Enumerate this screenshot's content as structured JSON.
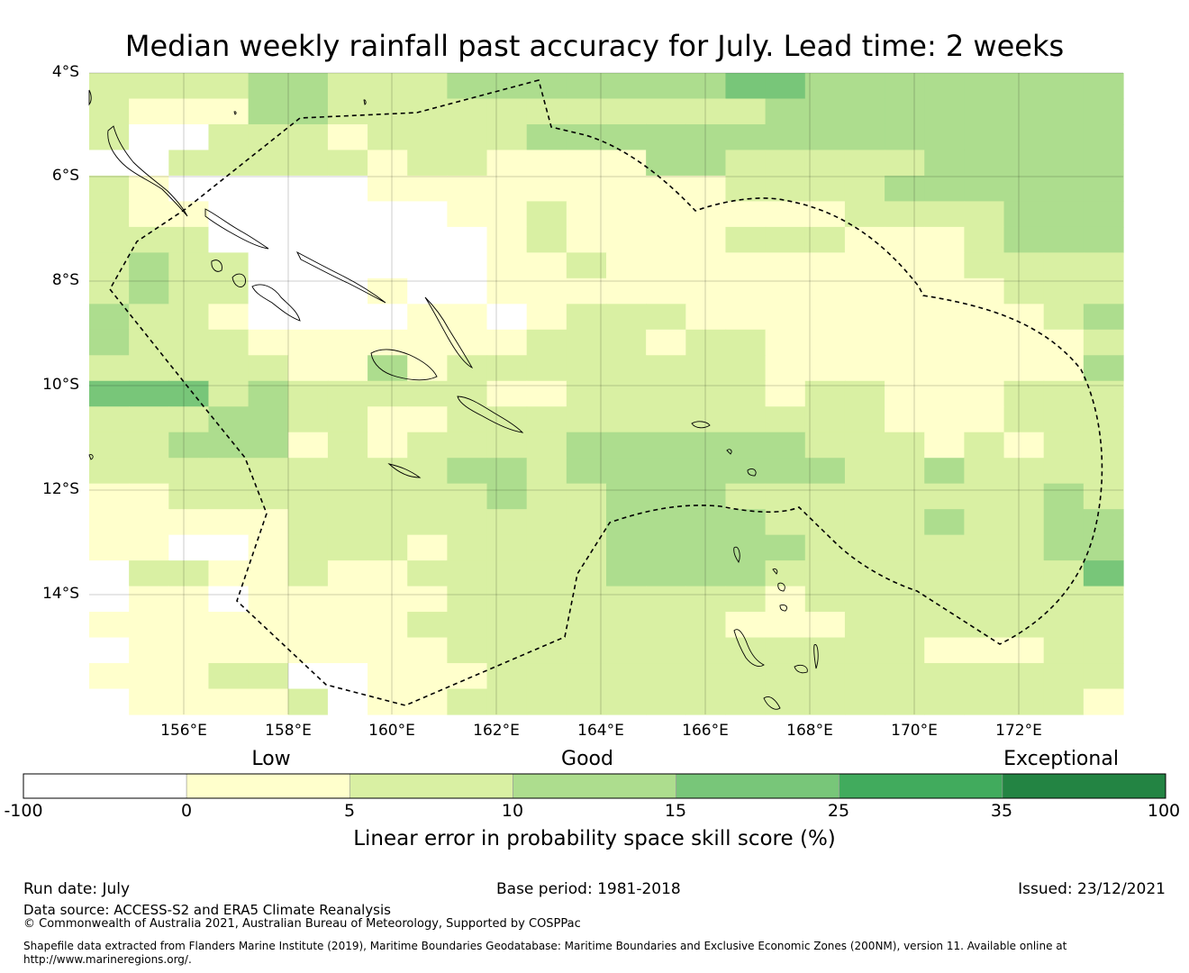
{
  "title": "Median weekly rainfall past accuracy for July. Lead time: 2 weeks",
  "map": {
    "lat_labels": [
      "4°S",
      "6°S",
      "8°S",
      "10°S",
      "12°S",
      "14°S"
    ],
    "lon_labels": [
      "156°E",
      "158°E",
      "160°E",
      "162°E",
      "164°E",
      "166°E",
      "168°E",
      "170°E",
      "172°E"
    ],
    "lat_range": [
      "4°S",
      "16.3°S"
    ],
    "lon_range": [
      "154.2°E",
      "174°E"
    ],
    "category_colors": [
      "#ffffff",
      "#ffffcc",
      "#d9f0a3",
      "#addd8e",
      "#78c679",
      "#41ab5d",
      "#238443"
    ],
    "cell_categories": [
      "22223322233333334433333333",
      "21113322222222222333333333",
      "20022212222333333333333333",
      "00222221221111332222233333",
      "21000001111111112222333333",
      "21100000011211111112222333",
      "22200000001211112221112333",
      "23220000001121111111112222",
      "23220001001111111111111222",
      "32210000110122211111111123",
      "32221111111222122111111112",
      "22222113122222222111111113",
      "44423222221122222122111222",
      "22233221122222222222111222",
      "22333121222233333322212122",
      "22222222233233333332232222",
      "11222222223223332222222232",
      "11111222222223333222232233",
      "11001222122223333322222233",
      "02211211222223333222222224",
      "01101111122222222122222222",
      "11111111222222221112222222",
      "01111111122222222222211122",
      "11122001112222222222222222",
      "01111201122222222222222221"
    ]
  },
  "colorbar": {
    "category_labels": [
      "Low",
      "Good",
      "Exceptional"
    ],
    "ticks": [
      "-100",
      "0",
      "5",
      "10",
      "15",
      "25",
      "35",
      "100"
    ],
    "colors": [
      "#ffffff",
      "#ffffcc",
      "#d9f0a3",
      "#addd8e",
      "#78c679",
      "#41ab5d",
      "#238443"
    ],
    "title": "Linear error in probability space skill score (%)"
  },
  "footer": {
    "run_date": "Run date: July",
    "base_period": "Base period: 1981-2018",
    "issued": "Issued: 23/12/2021",
    "data_source": "Data source: ACCESS-S2 and ERA5 Climate Reanalysis",
    "copyright": "© Commonwealth of Australia 2021, Australian Bureau of Meteorology, Supported by COSPPac",
    "shapefile_line1": "Shapefile data extracted from Flanders Marine Institute (2019), Maritime Boundaries Geodatabase: Maritime Boundaries and Exclusive Economic Zones (200NM), version 11. Available online at",
    "shapefile_line2": "http://www.marineregions.org/."
  }
}
